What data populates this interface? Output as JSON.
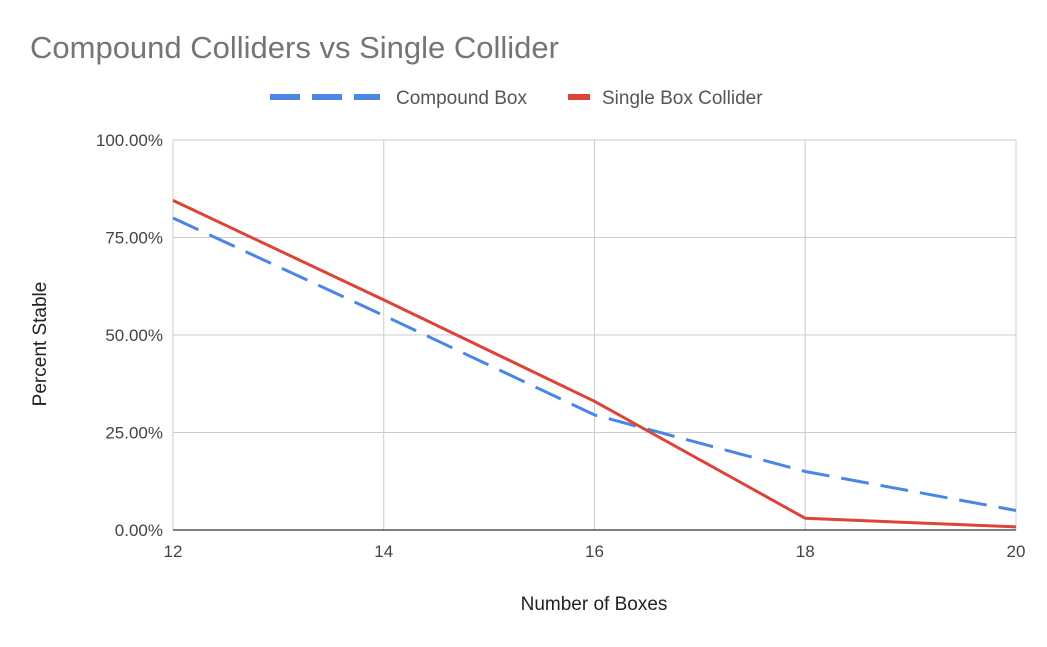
{
  "chart_data": {
    "type": "line",
    "title": "Compound Colliders vs Single Collider",
    "xlabel": "Number of Boxes",
    "ylabel": "Percent Stable",
    "x": [
      12,
      14,
      16,
      18,
      20
    ],
    "xlim": [
      12,
      20
    ],
    "ylim": [
      0,
      100
    ],
    "x_ticks": [
      "12",
      "14",
      "16",
      "18",
      "20"
    ],
    "y_ticks": [
      "0.00%",
      "25.00%",
      "50.00%",
      "75.00%",
      "100.00%"
    ],
    "y_tick_values": [
      0,
      25,
      50,
      75,
      100
    ],
    "grid": true,
    "legend_position": "top",
    "series": [
      {
        "name": "Compound Box",
        "values": [
          80,
          55,
          29.5,
          15,
          5
        ],
        "color": "#4a86e8",
        "style": "dashed"
      },
      {
        "name": "Single Box Collider",
        "values": [
          84.5,
          59,
          33,
          3,
          0.8
        ],
        "color": "#db4437",
        "style": "solid"
      }
    ]
  }
}
